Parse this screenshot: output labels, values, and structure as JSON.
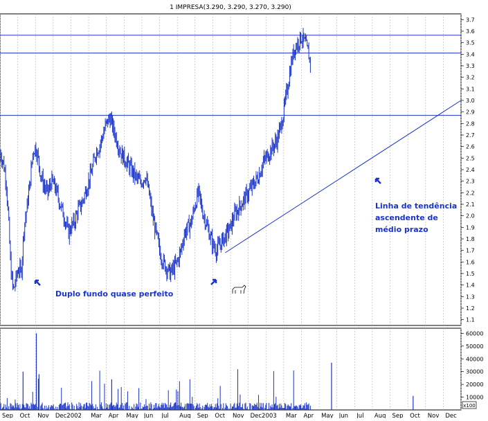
{
  "chart_data": {
    "type": "line",
    "title": "1 IMPRESA(3.290, 3.290, 3.270, 3.290)",
    "price_axis": {
      "ylim": [
        1.05,
        3.75
      ],
      "ticks": [
        "1.1",
        "1.2",
        "1.3",
        "1.4",
        "1.5",
        "1.6",
        "1.7",
        "1.8",
        "1.9",
        "2.0",
        "2.1",
        "2.2",
        "2.3",
        "2.4",
        "2.5",
        "2.6",
        "2.7",
        "2.8",
        "2.9",
        "3.0",
        "3.1",
        "3.2",
        "3.3",
        "3.4",
        "3.5",
        "3.6",
        "3.7"
      ]
    },
    "volume_axis": {
      "ylim": [
        0,
        64000
      ],
      "ticks": [
        "10000",
        "20000",
        "30000",
        "40000",
        "50000",
        "60000"
      ],
      "unit_label": "x100"
    },
    "x_axis": {
      "ticks": [
        "Sep",
        "Oct",
        "Nov",
        "Dec2002",
        "Mar",
        "Apr",
        "May",
        "Jun",
        "Jul",
        "Aug",
        "Sep",
        "Oct",
        "Nov",
        "Dec2003",
        "Mar",
        "Apr",
        "May",
        "Jun",
        "Jul",
        "Aug",
        "Sep",
        "Oct",
        "Nov",
        "Dec"
      ],
      "tick_index": [
        0,
        1,
        2,
        3,
        5,
        6,
        7,
        8,
        9,
        10,
        11,
        12,
        13,
        14,
        16,
        17,
        18,
        19,
        20,
        21,
        22,
        23,
        24,
        25
      ],
      "month_count": 26
    },
    "grid": true,
    "price_series": [
      [
        0.0,
        2.55
      ],
      [
        0.2,
        2.45
      ],
      [
        0.35,
        2.3
      ],
      [
        0.5,
        1.9
      ],
      [
        0.6,
        1.55
      ],
      [
        0.75,
        1.35
      ],
      [
        0.9,
        1.45
      ],
      [
        1.05,
        1.55
      ],
      [
        1.2,
        1.5
      ],
      [
        1.35,
        1.9
      ],
      [
        1.5,
        2.05
      ],
      [
        1.7,
        2.3
      ],
      [
        1.85,
        2.55
      ],
      [
        2.0,
        2.6
      ],
      [
        2.15,
        2.5
      ],
      [
        2.3,
        2.35
      ],
      [
        2.5,
        2.25
      ],
      [
        2.7,
        2.2
      ],
      [
        2.9,
        2.3
      ],
      [
        3.1,
        2.25
      ],
      [
        3.3,
        2.15
      ],
      [
        3.5,
        2.05
      ],
      [
        3.7,
        1.95
      ],
      [
        3.85,
        1.85
      ],
      [
        4.0,
        1.9
      ],
      [
        4.2,
        1.95
      ],
      [
        4.4,
        2.05
      ],
      [
        4.6,
        2.1
      ],
      [
        4.8,
        2.2
      ],
      [
        5.0,
        2.3
      ],
      [
        5.2,
        2.4
      ],
      [
        5.4,
        2.55
      ],
      [
        5.6,
        2.6
      ],
      [
        5.8,
        2.7
      ],
      [
        6.0,
        2.8
      ],
      [
        6.2,
        2.85
      ],
      [
        6.4,
        2.75
      ],
      [
        6.6,
        2.65
      ],
      [
        6.8,
        2.55
      ],
      [
        7.0,
        2.5
      ],
      [
        7.2,
        2.45
      ],
      [
        7.4,
        2.4
      ],
      [
        7.6,
        2.35
      ],
      [
        7.8,
        2.3
      ],
      [
        8.0,
        2.3
      ],
      [
        8.2,
        2.35
      ],
      [
        8.4,
        2.2
      ],
      [
        8.6,
        2.0
      ],
      [
        8.8,
        1.85
      ],
      [
        9.0,
        1.7
      ],
      [
        9.2,
        1.6
      ],
      [
        9.4,
        1.55
      ],
      [
        9.6,
        1.5
      ],
      [
        9.8,
        1.55
      ],
      [
        10.0,
        1.6
      ],
      [
        10.2,
        1.7
      ],
      [
        10.4,
        1.85
      ],
      [
        10.6,
        1.9
      ],
      [
        10.8,
        1.95
      ],
      [
        11.0,
        2.1
      ],
      [
        11.2,
        2.2
      ],
      [
        11.4,
        2.05
      ],
      [
        11.6,
        1.95
      ],
      [
        11.8,
        1.85
      ],
      [
        12.0,
        1.75
      ],
      [
        12.2,
        1.7
      ],
      [
        12.4,
        1.75
      ],
      [
        12.6,
        1.8
      ],
      [
        12.8,
        1.85
      ],
      [
        13.0,
        1.9
      ],
      [
        13.2,
        2.0
      ],
      [
        13.4,
        2.05
      ],
      [
        13.6,
        2.1
      ],
      [
        13.8,
        2.15
      ],
      [
        14.0,
        2.2
      ],
      [
        14.2,
        2.25
      ],
      [
        14.4,
        2.3
      ],
      [
        14.6,
        2.35
      ],
      [
        14.8,
        2.45
      ],
      [
        15.0,
        2.5
      ],
      [
        15.2,
        2.55
      ],
      [
        15.4,
        2.6
      ],
      [
        15.6,
        2.65
      ],
      [
        15.8,
        2.75
      ],
      [
        16.0,
        2.9
      ],
      [
        16.2,
        3.1
      ],
      [
        16.4,
        3.3
      ],
      [
        16.6,
        3.45
      ],
      [
        16.8,
        3.5
      ],
      [
        17.0,
        3.55
      ],
      [
        17.2,
        3.5
      ],
      [
        17.4,
        3.4
      ],
      [
        17.55,
        3.29
      ]
    ],
    "annotations": [
      "Duplo fundo quase perfeito",
      "Linha de tendência",
      "ascendente de",
      "médio prazo"
    ]
  }
}
